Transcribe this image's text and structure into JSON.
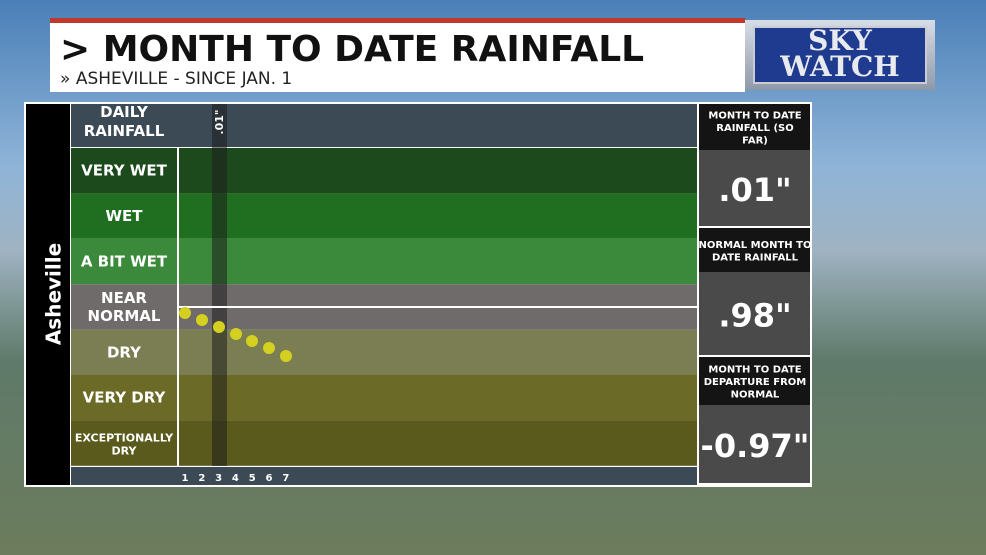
{
  "header": {
    "title": "MONTH TO DATE RAINFALL",
    "subtitle": "ASHEVILLE - SINCE JAN. 1",
    "logo_top": "SKY",
    "logo_bottom": "WATCH"
  },
  "side_label": "Asheville",
  "chart": {
    "daily_label": "DAILY RAINFALL",
    "bar_label": ".01\"",
    "bands": [
      "VERY WET",
      "WET",
      "A BIT WET",
      "NEAR NORMAL",
      "DRY",
      "VERY DRY",
      "EXCEPTIONALLY DRY"
    ],
    "days": [
      "1",
      "2",
      "3",
      "4",
      "5",
      "6",
      "7"
    ]
  },
  "stats": [
    {
      "label": "MONTH TO DATE RAINFALL (SO FAR)",
      "value": ".01\""
    },
    {
      "label": "NORMAL MONTH TO DATE RAINFALL",
      "value": ".98\""
    },
    {
      "label": "MONTH TO DATE DEPARTURE FROM NORMAL",
      "value": "-0.97\""
    }
  ]
}
